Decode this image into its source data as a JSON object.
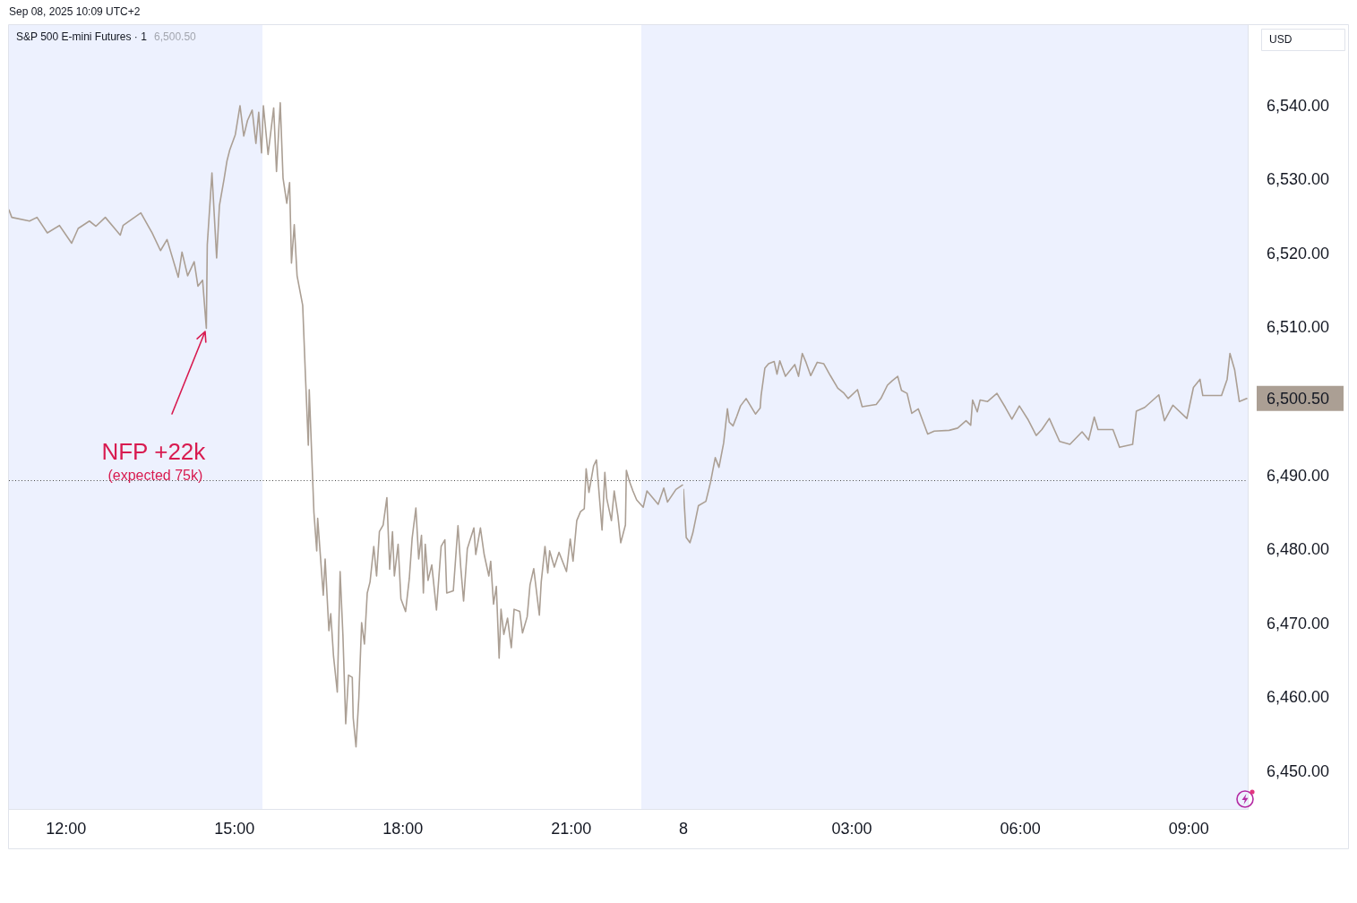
{
  "chart_data": [
    {
      "type": "line",
      "title": "S&P 500 E-mini Futures · 1",
      "subtitle": "6,500.50",
      "annotations": [
        "Sep 08, 2025 10:09 UTC+2",
        {
          "text": "NFP +22k",
          "x": "2025-09-05T14:30",
          "y": 6510.0
        },
        "(expected 75k)"
      ],
      "x": [
        "2025-09-05T10:59",
        "2025-09-05T11:02",
        "2025-09-05T11:21",
        "2025-09-05T11:29",
        "2025-09-05T11:40",
        "2025-09-05T11:53",
        "2025-09-05T12:06",
        "2025-09-05T12:13",
        "2025-09-05T12:25",
        "2025-09-05T12:32",
        "2025-09-05T12:42",
        "2025-09-05T12:58",
        "2025-09-05T13:01",
        "2025-09-05T13:20",
        "2025-09-05T13:32",
        "2025-09-05T13:41",
        "2025-09-05T13:48",
        "2025-09-05T14:00",
        "2025-09-05T14:04",
        "2025-09-05T14:10",
        "2025-09-05T14:17",
        "2025-09-05T14:21",
        "2025-09-05T14:26",
        "2025-09-05T14:30",
        "2025-09-05T14:31",
        "2025-09-05T14:36",
        "2025-09-05T14:41",
        "2025-09-05T14:44",
        "2025-09-05T14:49",
        "2025-09-05T14:52",
        "2025-09-05T14:55",
        "2025-09-05T15:01",
        "2025-09-05T15:06",
        "2025-09-05T15:10",
        "2025-09-05T15:14",
        "2025-09-05T15:19",
        "2025-09-05T15:23",
        "2025-09-05T15:26",
        "2025-09-05T15:29",
        "2025-09-05T15:31",
        "2025-09-05T15:36",
        "2025-09-05T15:42",
        "2025-09-05T15:45",
        "2025-09-05T15:49",
        "2025-09-05T15:52",
        "2025-09-05T15:56",
        "2025-09-05T15:59",
        "2025-09-05T16:01",
        "2025-09-05T16:04",
        "2025-09-05T16:07",
        "2025-09-05T16:13",
        "2025-09-05T16:16",
        "2025-09-05T16:19",
        "2025-09-05T16:20",
        "2025-09-05T16:25",
        "2025-09-05T16:28",
        "2025-09-05T16:29",
        "2025-09-05T16:35",
        "2025-09-05T16:37",
        "2025-09-05T16:41",
        "2025-09-05T16:43",
        "2025-09-05T16:46",
        "2025-09-05T16:50",
        "2025-09-05T16:53",
        "2025-09-05T16:56",
        "2025-09-05T16:59",
        "2025-09-05T17:02",
        "2025-09-05T17:06",
        "2025-09-05T17:07",
        "2025-09-05T17:10",
        "2025-09-05T17:13",
        "2025-09-05T17:16",
        "2025-09-05T17:19",
        "2025-09-05T17:22",
        "2025-09-05T17:25",
        "2025-09-05T17:29",
        "2025-09-05T17:32",
        "2025-09-05T17:35",
        "2025-09-05T17:39",
        "2025-09-05T17:43",
        "2025-09-05T17:46",
        "2025-09-05T17:49",
        "2025-09-05T17:51",
        "2025-09-05T17:55",
        "2025-09-05T17:58",
        "2025-09-05T18:03",
        "2025-09-05T18:07",
        "2025-09-05T18:10",
        "2025-09-05T18:14",
        "2025-09-05T18:17",
        "2025-09-05T18:20",
        "2025-09-05T18:22",
        "2025-09-05T18:24",
        "2025-09-05T18:27",
        "2025-09-05T18:31",
        "2025-09-05T18:36",
        "2025-09-05T18:41",
        "2025-09-05T18:45",
        "2025-09-05T18:47",
        "2025-09-05T18:54",
        "2025-09-05T18:59",
        "2025-09-05T19:02",
        "2025-09-05T19:05",
        "2025-09-05T19:09",
        "2025-09-05T19:16",
        "2025-09-05T19:18",
        "2025-09-05T19:23",
        "2025-09-05T19:27",
        "2025-09-05T19:32",
        "2025-09-05T19:34",
        "2025-09-05T19:37",
        "2025-09-05T19:40",
        "2025-09-05T19:43",
        "2025-09-05T19:45",
        "2025-09-05T19:48",
        "2025-09-05T19:52",
        "2025-09-05T19:56",
        "2025-09-05T19:59",
        "2025-09-05T20:05",
        "2025-09-05T20:08",
        "2025-09-05T20:13",
        "2025-09-05T20:16",
        "2025-09-05T20:20",
        "2025-09-05T20:26",
        "2025-09-05T20:28",
        "2025-09-05T20:32",
        "2025-09-05T20:35",
        "2025-09-05T20:37",
        "2025-09-05T20:42",
        "2025-09-05T20:47",
        "2025-09-05T20:55",
        "2025-09-05T20:59",
        "2025-09-05T21:02",
        "2025-09-05T21:06",
        "2025-09-05T21:10",
        "2025-09-05T21:14",
        "2025-09-05T21:16",
        "2025-09-05T21:19",
        "2025-09-05T21:24",
        "2025-09-05T21:27",
        "2025-09-05T21:33",
        "2025-09-05T21:36",
        "2025-09-05T21:38",
        "2025-09-05T21:43",
        "2025-09-05T21:46",
        "2025-09-05T21:50",
        "2025-09-05T21:53",
        "2025-09-05T21:58",
        "2025-09-05T21:59",
        "2025-09-05T22:02",
        "2025-09-05T22:06",
        "2025-09-05T22:10",
        "2025-09-05T22:17",
        "2025-09-05T22:21",
        "2025-09-05T22:33",
        "2025-09-05T22:39",
        "2025-09-05T22:43",
        "2025-09-05T22:52",
        "2025-09-05T22:59"
      ],
      "series": [
        {
          "color": "#ab9f94",
          "values": [
            6526.0,
            6525.0,
            6524.5,
            6525.0,
            6522.9,
            6523.9,
            6521.5,
            6523.5,
            6524.5,
            6523.8,
            6525.0,
            6522.6,
            6523.9,
            6525.6,
            6522.9,
            6520.5,
            6522.0,
            6516.9,
            6520.3,
            6517.1,
            6519.0,
            6515.7,
            6516.5,
            6510.0,
            6521.3,
            6531.0,
            6519.5,
            6526.6,
            6530.2,
            6532.6,
            6534.1,
            6536.2,
            6540.1,
            6536.0,
            6538.1,
            6539.5,
            6535.0,
            6539.2,
            6533.7,
            6540.1,
            6533.5,
            6539.8,
            6531.2,
            6540.5,
            6530.3,
            6526.9,
            6529.7,
            6518.8,
            6524.0,
            6517.1,
            6513.1,
            6503.4,
            6494.2,
            6501.7,
            6485.1,
            6479.9,
            6484.3,
            6473.9,
            6478.8,
            6469.1,
            6471.4,
            6465.6,
            6460.8,
            6477.1,
            6468.5,
            6456.5,
            6463.1,
            6462.8,
            6457.3,
            6453.4,
            6460.0,
            6470.2,
            6467.3,
            6474.2,
            6475.7,
            6480.5,
            6476.5,
            6482.5,
            6483.4,
            6487.1,
            6477.4,
            6482.5,
            6476.5,
            6480.8,
            6473.4,
            6471.7,
            6476.2,
            6481.6,
            6485.7,
            6478.8,
            6482.0,
            6474.2,
            6480.8,
            6475.9,
            6478.0,
            6471.9,
            6480.5,
            6481.4,
            6474.2,
            6474.5,
            6483.3,
            6477.6,
            6473.1,
            6480.2,
            6483.0,
            6479.4,
            6483.0,
            6479.4,
            6476.5,
            6478.5,
            6472.7,
            6475.1,
            6465.4,
            6472.0,
            6468.6,
            6470.8,
            6466.8,
            6472.0,
            6471.7,
            6468.8,
            6471.0,
            6475.3,
            6477.5,
            6471.2,
            6475.7,
            6480.5,
            6476.9,
            6479.9,
            6477.7,
            6479.7,
            6477.1,
            6481.5,
            6478.5,
            6484.0,
            6485.2,
            6485.6,
            6491.0,
            6487.8,
            6491.4,
            6492.2,
            6482.7,
            6490.5,
            6487.0,
            6484.0,
            6488.0,
            6484.6,
            6481.0,
            6483.4,
            6490.8,
            6489.4,
            6488.0,
            6486.8,
            6485.8,
            6488.0,
            6486.2,
            6488.4,
            6486.5,
            6488.2,
            6488.8
          ]
        }
      ],
      "xlim": [
        "2025-09-05T10:59",
        "2025-09-05T23:00"
      ],
      "xticks": [
        {
          "value": "2025-09-05T12:00",
          "label": "12:00"
        },
        {
          "value": "2025-09-05T15:00",
          "label": "15:00"
        },
        {
          "value": "2025-09-05T18:00",
          "label": "18:00"
        },
        {
          "value": "2025-09-05T21:00",
          "label": "21:00"
        }
      ],
      "ylim": [
        6445,
        6551
      ],
      "tick_labels": "x",
      "bands": [
        {
          "axis": "x",
          "from": "2025-09-05T10:59",
          "to": "2025-09-05T15:30",
          "color": "#edf1fe"
        },
        {
          "axis": "x",
          "from": "2025-09-05T22:15",
          "to": "2025-09-05T23:00",
          "color": "#edf1fe"
        }
      ],
      "ref_lines": [
        {
          "axis": "y",
          "value": 6489.5,
          "color": "#4a4a4a",
          "line_style": "dotted"
        }
      ],
      "grid": false,
      "legend": false,
      "marker": "none"
    },
    {
      "type": "line",
      "ylabel": "USD",
      "x": [
        "2025-09-08T00:00",
        "2025-09-08T00:03",
        "2025-09-08T00:07",
        "2025-09-08T00:10",
        "2025-09-08T00:16",
        "2025-09-08T00:24",
        "2025-09-08T00:29",
        "2025-09-08T00:34",
        "2025-09-08T00:38",
        "2025-09-08T00:43",
        "2025-09-08T00:47",
        "2025-09-08T00:49",
        "2025-09-08T00:53",
        "2025-09-08T00:57",
        "2025-09-08T01:01",
        "2025-09-08T01:07",
        "2025-09-08T01:17",
        "2025-09-08T01:22",
        "2025-09-08T01:23",
        "2025-09-08T01:27",
        "2025-09-08T01:31",
        "2025-09-08T01:37",
        "2025-09-08T01:40",
        "2025-09-08T01:43",
        "2025-09-08T01:49",
        "2025-09-08T01:59",
        "2025-09-08T02:03",
        "2025-09-08T02:07",
        "2025-09-08T02:11",
        "2025-09-08T02:16",
        "2025-09-08T02:23",
        "2025-09-08T02:30",
        "2025-09-08T02:37",
        "2025-09-08T02:45",
        "2025-09-08T02:51",
        "2025-09-08T02:56",
        "2025-09-08T03:06",
        "2025-09-08T03:11",
        "2025-09-08T03:26",
        "2025-09-08T03:31",
        "2025-09-08T03:38",
        "2025-09-08T03:43",
        "2025-09-08T03:49",
        "2025-09-08T03:53",
        "2025-09-08T03:59",
        "2025-09-08T04:04",
        "2025-09-08T04:11",
        "2025-09-08T04:21",
        "2025-09-08T04:28",
        "2025-09-08T04:44",
        "2025-09-08T04:53",
        "2025-09-08T05:02",
        "2025-09-08T05:07",
        "2025-09-08T05:09",
        "2025-09-08T05:14",
        "2025-09-08T05:17",
        "2025-09-08T05:25",
        "2025-09-08T05:35",
        "2025-09-08T05:44",
        "2025-09-08T05:51",
        "2025-09-08T05:59",
        "2025-09-08T06:08",
        "2025-09-08T06:17",
        "2025-09-08T06:23",
        "2025-09-08T06:31",
        "2025-09-08T06:42",
        "2025-09-08T06:53",
        "2025-09-08T07:06",
        "2025-09-08T07:13",
        "2025-09-08T07:19",
        "2025-09-08T07:23",
        "2025-09-08T07:39",
        "2025-09-08T07:46",
        "2025-09-08T08:00",
        "2025-09-08T08:04",
        "2025-09-08T08:13",
        "2025-09-08T08:28",
        "2025-09-08T08:34",
        "2025-09-08T08:43",
        "2025-09-08T08:58",
        "2025-09-08T09:05",
        "2025-09-08T09:12",
        "2025-09-08T09:15",
        "2025-09-08T09:35",
        "2025-09-08T09:41",
        "2025-09-08T09:44",
        "2025-09-08T09:49",
        "2025-09-08T09:54",
        "2025-09-08T10:02"
      ],
      "series": [
        {
          "color": "#ab9f94",
          "values": [
            6488.2,
            6481.7,
            6481.0,
            6482.3,
            6486.0,
            6486.6,
            6489.2,
            6492.5,
            6491.2,
            6494.5,
            6499.1,
            6497.3,
            6496.8,
            6498.1,
            6499.5,
            6500.5,
            6498.4,
            6499.2,
            6500.9,
            6504.6,
            6505.2,
            6505.5,
            6503.8,
            6505.6,
            6503.5,
            6505.1,
            6503.5,
            6506.6,
            6505.4,
            6503.6,
            6505.4,
            6505.2,
            6503.6,
            6501.9,
            6501.3,
            6500.5,
            6501.7,
            6499.4,
            6499.7,
            6500.5,
            6502.3,
            6502.9,
            6503.5,
            6501.6,
            6501.2,
            6498.5,
            6499.1,
            6495.7,
            6496.1,
            6496.2,
            6496.5,
            6497.5,
            6496.9,
            6500.3,
            6498.7,
            6500.3,
            6500.1,
            6501.2,
            6499.3,
            6497.7,
            6499.5,
            6497.7,
            6495.5,
            6496.3,
            6497.8,
            6494.7,
            6494.3,
            6496.0,
            6494.9,
            6498.0,
            6496.3,
            6496.3,
            6493.9,
            6494.3,
            6498.8,
            6499.3,
            6501.0,
            6497.5,
            6499.6,
            6497.8,
            6502.0,
            6503.1,
            6500.9,
            6500.9,
            6503.1,
            6506.6,
            6504.4,
            6500.1,
            6500.5
          ],
          "value_labels": [
            null,
            null,
            null,
            null,
            null,
            null,
            null,
            null,
            null,
            null,
            null,
            null,
            null,
            null,
            null,
            null,
            null,
            null,
            null,
            null,
            null,
            null,
            null,
            null,
            null,
            null,
            null,
            null,
            null,
            null,
            null,
            null,
            null,
            null,
            null,
            null,
            null,
            null,
            null,
            null,
            null,
            null,
            null,
            null,
            null,
            null,
            null,
            null,
            null,
            null,
            null,
            null,
            null,
            null,
            null,
            null,
            null,
            null,
            null,
            null,
            null,
            null,
            null,
            null,
            null,
            null,
            null,
            null,
            null,
            null,
            null,
            null,
            null,
            null,
            null,
            null,
            null,
            null,
            null,
            null,
            null,
            null,
            null,
            null,
            null,
            null,
            null,
            null,
            "6,500.50"
          ]
        }
      ],
      "xlim": [
        "2025-09-08T00:00",
        "2025-09-08T10:03"
      ],
      "xticks": [
        {
          "value": "2025-09-08T00:00",
          "label": "8"
        },
        {
          "value": "2025-09-08T03:00",
          "label": "03:00"
        },
        {
          "value": "2025-09-08T06:00",
          "label": "06:00"
        },
        {
          "value": "2025-09-08T09:00",
          "label": "09:00"
        }
      ],
      "ylim": [
        6445,
        6551
      ],
      "yticks": [
        {
          "value": 6450,
          "label": "6,450.00"
        },
        {
          "value": 6460,
          "label": "6,460.00"
        },
        {
          "value": 6470,
          "label": "6,470.00"
        },
        {
          "value": 6480,
          "label": "6,480.00"
        },
        {
          "value": 6490,
          "label": "6,490.00"
        },
        {
          "value": 6510,
          "label": "6,510.00"
        },
        {
          "value": 6520,
          "label": "6,520.00"
        },
        {
          "value": 6530,
          "label": "6,530.00"
        },
        {
          "value": 6540,
          "label": "6,540.00"
        }
      ],
      "bands": [
        {
          "axis": "x",
          "from": "2025-09-08T00:00",
          "to": "2025-09-08T10:03",
          "color": "#edf1fe"
        }
      ],
      "ref_lines": [
        {
          "axis": "y",
          "value": 6489.5,
          "color": "#4a4a4a",
          "line_style": "dotted"
        }
      ],
      "grid": false,
      "legend": false,
      "marker": "none"
    }
  ]
}
